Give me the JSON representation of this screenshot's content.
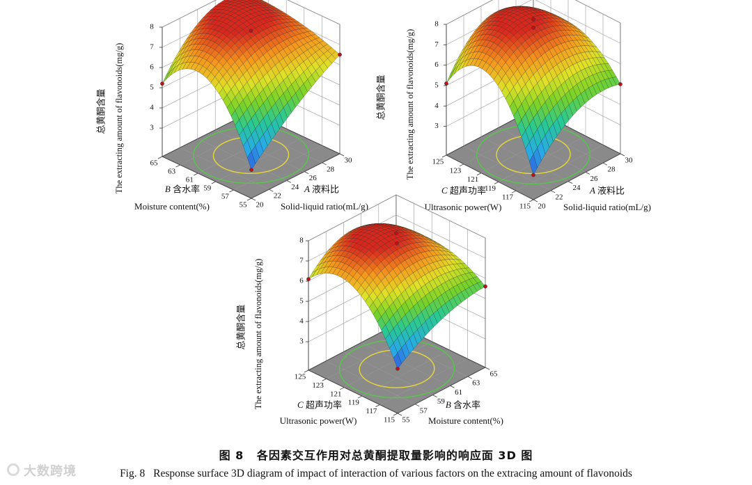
{
  "chart_data": [
    {
      "type": "surface3d",
      "zlabel_cn": "总黄酮含量",
      "zlabel_en": "The extracting amount of flavonoids(mg/g)",
      "zticks": [
        "3",
        "4",
        "5",
        "6",
        "7",
        "8"
      ],
      "zlim": [
        3,
        8
      ],
      "left_axis": {
        "letter": "B",
        "label_cn": "含水率",
        "label_en": "Moisture content(%)",
        "ticks": [
          "55",
          "57",
          "59",
          "61",
          "63",
          "65"
        ],
        "range": [
          55,
          65
        ]
      },
      "right_axis": {
        "letter": "A",
        "label_cn": "液料比",
        "label_en": "Solid-liquid ratio(mL/g)",
        "ticks": [
          "20",
          "22",
          "24",
          "26",
          "28",
          "30"
        ],
        "range": [
          20,
          30
        ]
      },
      "surface": {
        "max_z": 7.75,
        "min_z": 3.0,
        "corners": {
          "left_near": 5.2,
          "near": 3.0,
          "right_near": 6.5,
          "far": 7.4
        },
        "edge_midpoints": {
          "left": 6.5,
          "front": 5.0,
          "right": 7.2,
          "back": 7.55
        }
      }
    },
    {
      "type": "surface3d",
      "zlabel_cn": "总黄酮含量",
      "zlabel_en": "The extracting amount of flavonoids(mg/g)",
      "zticks": [
        "3",
        "4",
        "5",
        "6",
        "7",
        "8"
      ],
      "zlim": [
        3,
        8
      ],
      "left_axis": {
        "letter": "C",
        "label_cn": "超声功率",
        "label_en": "Ultrasonic power(W)",
        "ticks": [
          "115",
          "117",
          "119",
          "121",
          "123",
          "125"
        ],
        "range": [
          115,
          125
        ]
      },
      "right_axis": {
        "letter": "A",
        "label_cn": "液料比",
        "label_en": "Solid-liquid ratio(mL/g)",
        "ticks": [
          "20",
          "22",
          "24",
          "26",
          "28",
          "30"
        ],
        "range": [
          20,
          30
        ]
      },
      "surface": {
        "max_z": 7.8,
        "min_z": 2.8,
        "corners": {
          "left_near": 5.1,
          "near": 2.8,
          "right_near": 5.0,
          "far": 6.0
        },
        "edge_midpoints": {
          "left": 6.6,
          "front": 4.8,
          "right": 6.7,
          "back": 7.3
        }
      }
    },
    {
      "type": "surface3d",
      "zlabel_cn": "总黄酮含量",
      "zlabel_en": "The extracting amount of flavonoids(mg/g)",
      "zticks": [
        "3",
        "4",
        "5",
        "6",
        "7",
        "8"
      ],
      "zlim": [
        3,
        8
      ],
      "left_axis": {
        "letter": "C",
        "label_cn": "超声功率",
        "label_en": "Ultrasonic power(W)",
        "ticks": [
          "115",
          "117",
          "119",
          "121",
          "123",
          "125"
        ],
        "range": [
          115,
          125
        ]
      },
      "right_axis": {
        "letter": "B",
        "label_cn": "含水率",
        "label_en": "Moisture content(%)",
        "ticks": [
          "55",
          "57",
          "59",
          "61",
          "63",
          "65"
        ],
        "range": [
          55,
          65
        ]
      },
      "surface": {
        "max_z": 7.8,
        "min_z": 3.8,
        "corners": {
          "left_near": 6.1,
          "near": 3.8,
          "right_near": 5.6,
          "far": 6.1
        },
        "edge_midpoints": {
          "left": 6.8,
          "front": 5.1,
          "right": 6.6,
          "back": 7.4
        }
      }
    }
  ],
  "caption": {
    "cn_fig": "图 8",
    "cn_text": "各因素交互作用对总黄酮提取量影响的响应面 3D 图",
    "en_fig": "Fig. 8",
    "en_text": "Response surface 3D diagram of impact of interaction of various factors on the extracing amount of flavonoids"
  },
  "watermark": "大数跨境"
}
